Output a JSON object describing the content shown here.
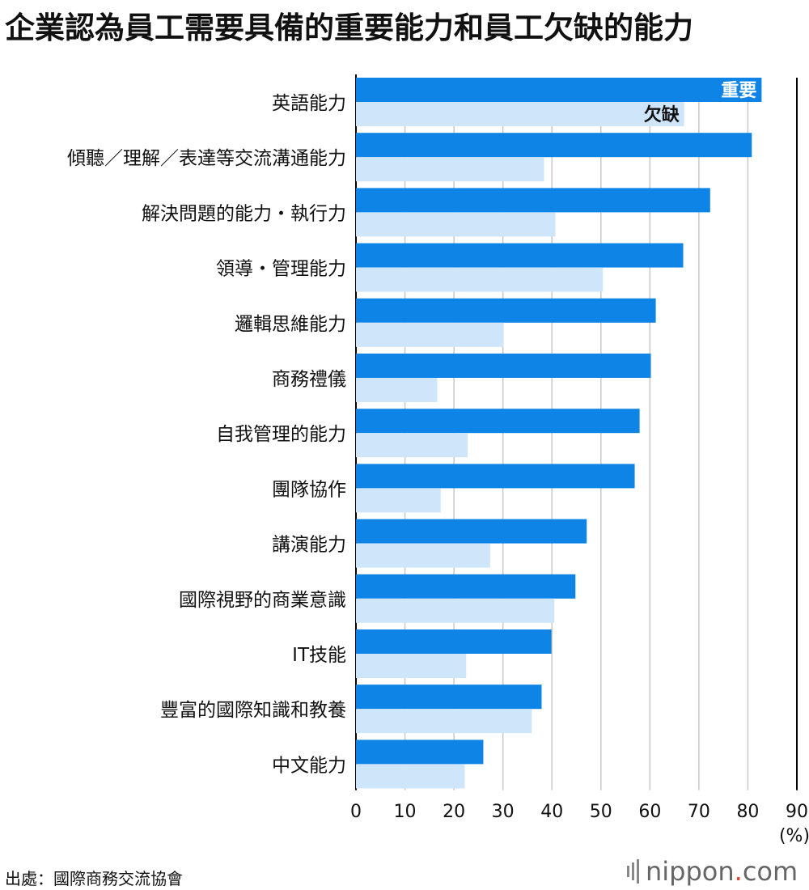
{
  "title": "企業認為員工需要具備的重要能力和員工欠缺的能力",
  "source": "出處：國際商務交流協會",
  "brand": {
    "name": "nippon",
    "dot": ".",
    "suffix": "com"
  },
  "colors": {
    "important": "#0e85e6",
    "lacking": "#cfe6fa",
    "grid": "#c8c8c8",
    "axis": "#000000"
  },
  "chart_data": {
    "type": "bar",
    "orientation": "horizontal",
    "categories": [
      "英語能力",
      "傾聽／理解／表達等交流溝通能力",
      "解決問題的能力・執行力",
      "領導・管理能力",
      "邏輯思維能力",
      "商務禮儀",
      "自我管理的能力",
      "團隊協作",
      "講演能力",
      "國際視野的商業意識",
      "IT技能",
      "豐富的國際知識和教養",
      "中文能力"
    ],
    "series": [
      {
        "name": "重要",
        "values": [
          82.8,
          80.8,
          72.3,
          66.8,
          61.2,
          60.2,
          57.9,
          56.9,
          47.1,
          44.8,
          39.9,
          37.9,
          26.0
        ]
      },
      {
        "name": "欠缺",
        "values": [
          67.0,
          38.4,
          40.7,
          50.4,
          30.1,
          16.6,
          22.8,
          17.3,
          27.4,
          40.5,
          22.5,
          35.9,
          22.2
        ]
      }
    ],
    "xlim": [
      0,
      90
    ],
    "xticks": [
      "0",
      "10",
      "20",
      "30",
      "40",
      "50",
      "60",
      "70",
      "80",
      "90"
    ],
    "xlabel": "(%)",
    "grid": true
  }
}
